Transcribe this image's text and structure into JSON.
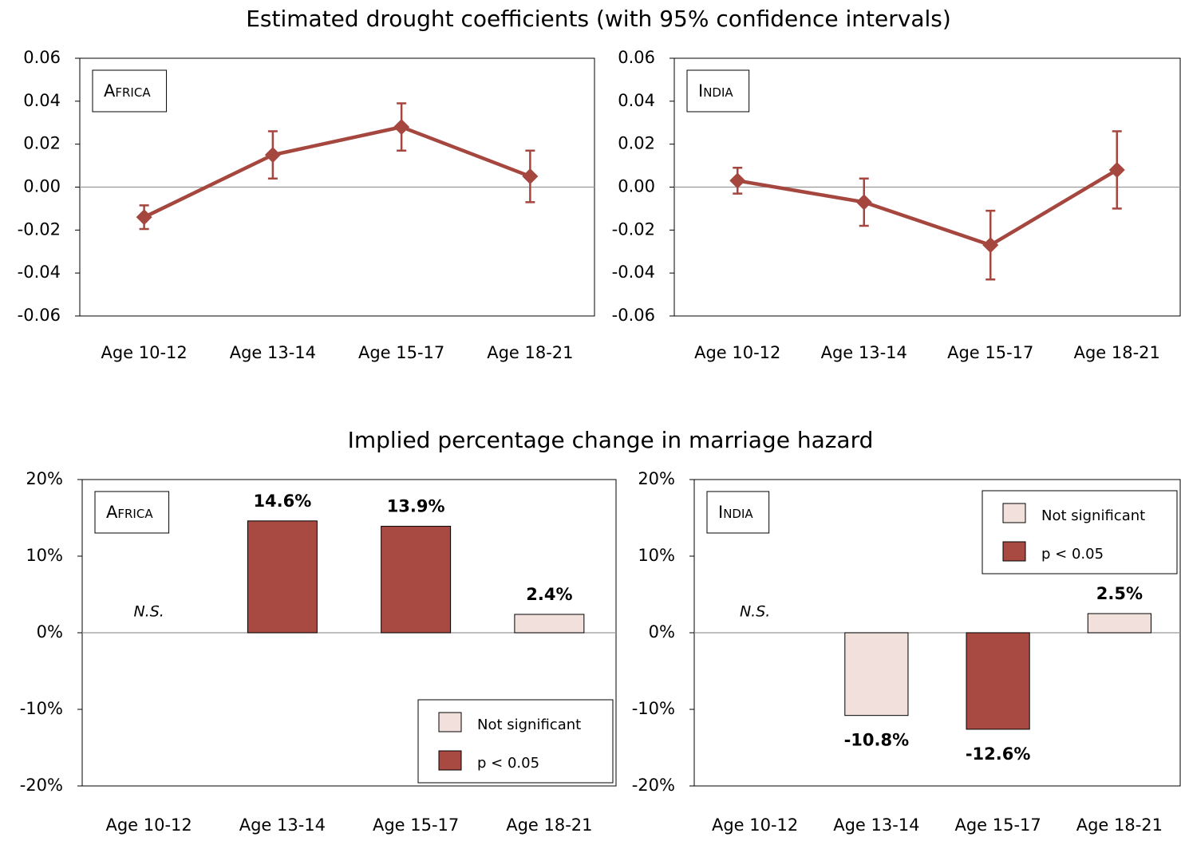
{
  "chart_data": [
    {
      "type": "line",
      "title": "Estimated drought coefficients (with 95% confidence intervals)",
      "label": "Africa",
      "categories": [
        "Age 10-12",
        "Age 13-14",
        "Age 15-17",
        "Age 18-21"
      ],
      "values": [
        -0.014,
        0.015,
        0.028,
        0.005
      ],
      "errors": [
        0.0055,
        0.011,
        0.011,
        0.012
      ],
      "color": "#a5463f",
      "ylim": [
        -0.06,
        0.06
      ],
      "yticks": [
        -0.06,
        -0.04,
        -0.02,
        {
          "value": 0,
          "label": "0.00"
        },
        0.02,
        0.04,
        0.06
      ]
    },
    {
      "type": "line",
      "label": "India",
      "categories": [
        "Age 10-12",
        "Age 13-14",
        "Age 15-17",
        "Age 18-21"
      ],
      "values": [
        0.003,
        -0.007,
        -0.027,
        0.008
      ],
      "errors": [
        0.006,
        0.011,
        0.016,
        0.018
      ],
      "color": "#a5463f",
      "ylim": [
        -0.06,
        0.06
      ],
      "yticks": [
        -0.06,
        -0.04,
        -0.02,
        {
          "value": 0,
          "label": "0.00"
        },
        0.02,
        0.04,
        0.06
      ]
    },
    {
      "type": "bar",
      "title": "Implied percentage change in marriage hazard",
      "label": "Africa",
      "categories": [
        "Age 10-12",
        "Age 13-14",
        "Age 15-17",
        "Age 18-21"
      ],
      "values": [
        null,
        14.6,
        13.9,
        2.4
      ],
      "value_labels": [
        "N.S.",
        "14.6%",
        "13.9%",
        "2.4%"
      ],
      "colors": [
        null,
        "#a84a42",
        "#a84a42",
        "#f2e0dd"
      ],
      "legend": [
        {
          "name": "Not significant",
          "color": "#f2e0dd"
        },
        {
          "name": "p < 0.05",
          "color": "#a84a42"
        }
      ],
      "legend_position": "bottom-right",
      "ylim": [
        -20,
        20
      ],
      "yticks": [
        {
          "value": -20,
          "label": "-20%"
        },
        {
          "value": -10,
          "label": "-10%"
        },
        {
          "value": 0,
          "label": "0%"
        },
        {
          "value": 10,
          "label": "10%"
        },
        {
          "value": 20,
          "label": "20%"
        }
      ]
    },
    {
      "type": "bar",
      "label": "India",
      "categories": [
        "Age 10-12",
        "Age 13-14",
        "Age 15-17",
        "Age 18-21"
      ],
      "values": [
        null,
        -10.8,
        -12.6,
        2.5
      ],
      "value_labels": [
        "N.S.",
        "-10.8%",
        "-12.6%",
        "2.5%"
      ],
      "colors": [
        null,
        "#f2e0dd",
        "#a84a42",
        "#f2e0dd"
      ],
      "legend": [
        {
          "name": "Not significant",
          "color": "#f2e0dd"
        },
        {
          "name": "p < 0.05",
          "color": "#a84a42"
        }
      ],
      "legend_position": "top-right",
      "ylim": [
        -20,
        20
      ],
      "yticks": [
        {
          "value": -20,
          "label": "-20%"
        },
        {
          "value": -10,
          "label": "-10%"
        },
        {
          "value": 0,
          "label": "0%"
        },
        {
          "value": 10,
          "label": "10%"
        },
        {
          "value": 20,
          "label": "20%"
        }
      ]
    }
  ]
}
